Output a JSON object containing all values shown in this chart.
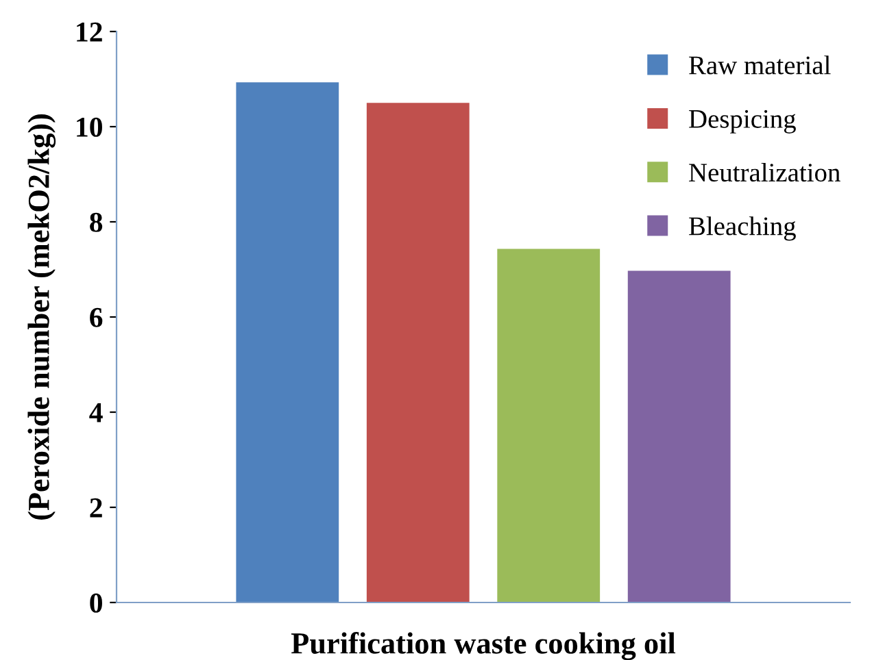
{
  "chart_data": {
    "type": "bar",
    "xlabel": "Purification waste cooking oil",
    "ylabel": "(Peroxide number (mekO2/kg))",
    "categories": [
      null
    ],
    "series": [
      {
        "name": "Raw material",
        "color": "#4f81bd",
        "values": [
          10.93
        ]
      },
      {
        "name": "Despicing",
        "color": "#c0504d",
        "values": [
          10.5
        ]
      },
      {
        "name": "Neutralization",
        "color": "#9bbb59",
        "values": [
          7.43
        ]
      },
      {
        "name": "Bleaching",
        "color": "#8064a2",
        "values": [
          6.97
        ]
      }
    ],
    "ylim": [
      0,
      12
    ],
    "yticks": [
      0,
      2,
      4,
      6,
      8,
      10,
      12
    ],
    "legend": "top right",
    "grid": false
  }
}
